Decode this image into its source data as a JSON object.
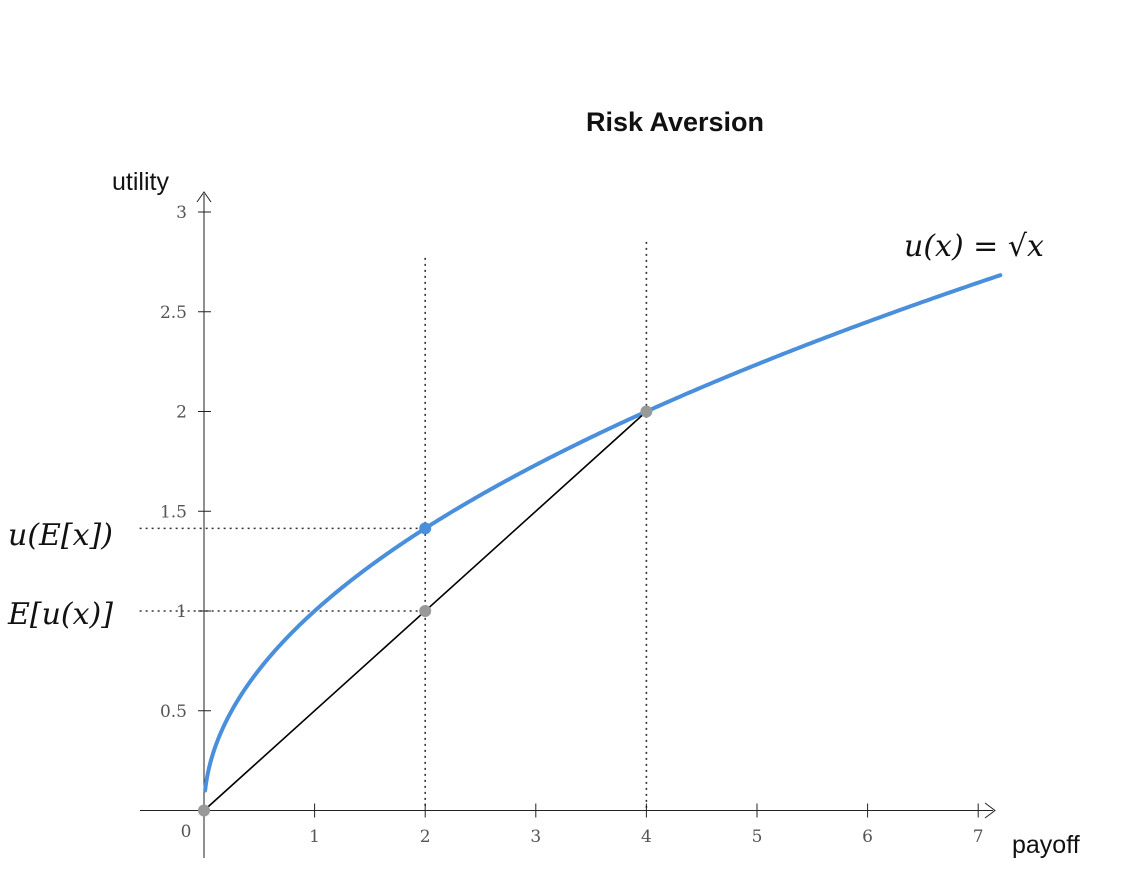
{
  "chart_data": {
    "type": "line",
    "title": "Risk Aversion",
    "xlabel": "payoff",
    "ylabel": "utility",
    "xlim": [
      0,
      7
    ],
    "ylim": [
      0,
      3
    ],
    "x_ticks": [
      0,
      1,
      2,
      3,
      4,
      5,
      6,
      7
    ],
    "x_tick_labels": [
      "0",
      "1",
      "2",
      "3",
      "4",
      "5",
      "6",
      "7"
    ],
    "y_ticks": [
      0.5,
      1,
      1.5,
      2,
      2.5,
      3
    ],
    "y_tick_labels": [
      "0.5",
      "1",
      "1.5",
      "2",
      "2.5",
      "3"
    ],
    "grid": false,
    "series": [
      {
        "function": "sqrt",
        "label": "u(x) = √x",
        "color": "#4a8fdc",
        "x_range": [
          0.01,
          7.2
        ]
      },
      {
        "type": "segment",
        "points": [
          [
            0,
            0
          ],
          [
            4,
            2
          ]
        ],
        "color": "#000000"
      }
    ],
    "points": [
      {
        "x": 0,
        "y": 0,
        "color": "#999999"
      },
      {
        "x": 2,
        "y": 1.4142,
        "color": "#4a8fdc"
      },
      {
        "x": 2,
        "y": 1,
        "color": "#999999"
      },
      {
        "x": 4,
        "y": 2,
        "color": "#999999"
      }
    ],
    "guides": {
      "vertical": [
        {
          "x": 2,
          "y_top": 2.77
        },
        {
          "x": 4,
          "y_top": 2.85
        }
      ],
      "horizontal": [
        {
          "y": 1.4142,
          "x_from": -0.6,
          "x_to": 2
        },
        {
          "y": 1,
          "x_from": -0.6,
          "x_to": 2
        }
      ]
    },
    "annotations": {
      "curve_label": "u(x) = √x",
      "ueu_label": "u(E[x])",
      "eux_label": "E[u(x)]"
    }
  }
}
